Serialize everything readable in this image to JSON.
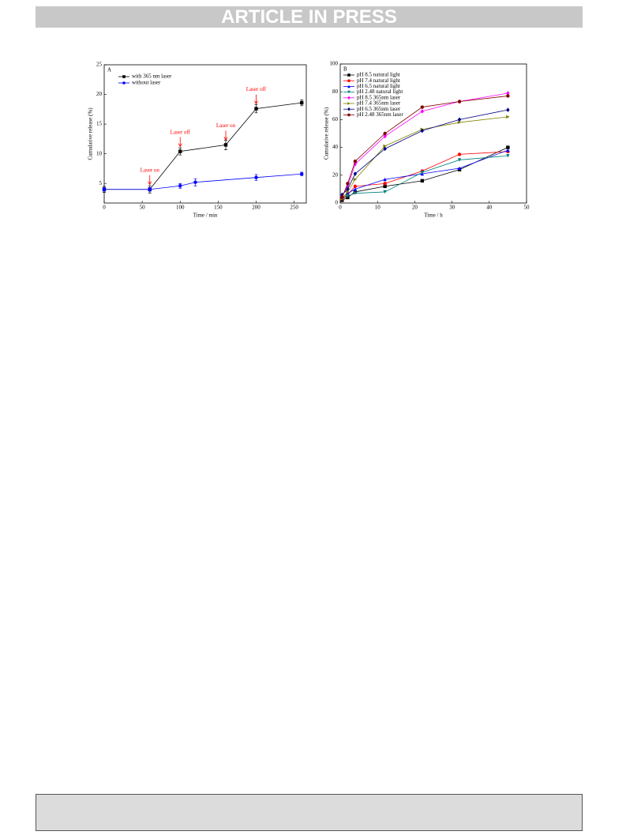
{
  "header": "ARTICLE IN PRESS",
  "chart_data": [
    {
      "type": "line",
      "panel": "A",
      "xlabel": "Time / min",
      "ylabel": "Cumulative release (%)",
      "xlim": [
        0,
        266
      ],
      "xticks": [
        0,
        50,
        100,
        150,
        200,
        250
      ],
      "ylim": [
        1.7,
        25
      ],
      "yticks": [
        5,
        10,
        15,
        20,
        25
      ],
      "legend": "upper left",
      "series": [
        {
          "name": "with 365 nm laser",
          "color": "#000000",
          "marker": "square",
          "x": [
            0,
            60,
            100,
            160,
            200,
            260
          ],
          "values": [
            4,
            4,
            10.4,
            11.5,
            17.6,
            18.6
          ],
          "errors": [
            0.5,
            0.6,
            0.6,
            0.8,
            0.7,
            0.5
          ]
        },
        {
          "name": "without  laser",
          "color": "#0000ff",
          "marker": "circle",
          "x": [
            0,
            60,
            100,
            120,
            200,
            260
          ],
          "values": [
            4,
            4,
            4.6,
            5.2,
            6,
            6.6
          ],
          "errors": [
            0.3,
            0.3,
            0.4,
            0.6,
            0.5,
            0.3
          ]
        }
      ],
      "annotations": [
        "Laser on",
        "Laser off",
        "Laser on",
        "Laser off"
      ]
    },
    {
      "type": "line",
      "panel": "B",
      "xlabel": "Time / h",
      "ylabel": "Cumulative release (%)",
      "xlim": [
        0,
        50
      ],
      "xticks": [
        0,
        10,
        20,
        30,
        40,
        50
      ],
      "ylim": [
        0,
        100
      ],
      "yticks": [
        0,
        20,
        40,
        60,
        80,
        100
      ],
      "legend": "upper left",
      "series": [
        {
          "name": "pH 8.5  natural light",
          "color": "#000000",
          "marker": "square",
          "x": [
            0.5,
            2,
            4,
            12,
            22,
            32,
            45
          ],
          "values": [
            2,
            4,
            8,
            12,
            16,
            24,
            40
          ]
        },
        {
          "name": "pH 7.4  natural light",
          "color": "#ff0000",
          "marker": "circle",
          "x": [
            0.5,
            2,
            4,
            12,
            22,
            32,
            45
          ],
          "values": [
            3,
            6,
            12,
            14,
            23,
            35,
            37
          ]
        },
        {
          "name": "pH 6.5  natural light",
          "color": "#0000ff",
          "marker": "triangle-up",
          "x": [
            0.5,
            2,
            4,
            12,
            22,
            32,
            45
          ],
          "values": [
            4,
            7,
            10,
            17,
            21,
            25,
            38
          ]
        },
        {
          "name": "pH 2.48 natural light",
          "color": "#008080",
          "marker": "triangle-down",
          "x": [
            0.5,
            2,
            4,
            12,
            22,
            32,
            45
          ],
          "values": [
            3,
            5,
            7,
            8,
            22,
            31,
            34
          ]
        },
        {
          "name": "pH 8.5  365nm laser",
          "color": "#ff00ff",
          "marker": "diamond",
          "x": [
            0.5,
            2,
            4,
            12,
            22,
            32,
            45
          ],
          "values": [
            5,
            12,
            28,
            48,
            66,
            73,
            79
          ]
        },
        {
          "name": "pH 7.4  365nm laser",
          "color": "#808000",
          "marker": "triangle-right",
          "x": [
            0.5,
            2,
            4,
            12,
            22,
            32,
            45
          ],
          "values": [
            3,
            8,
            17,
            41,
            53,
            58,
            62
          ]
        },
        {
          "name": "pH 6.5  365nm laser",
          "color": "#000080",
          "marker": "diamond",
          "x": [
            0.5,
            2,
            4,
            12,
            22,
            32,
            45
          ],
          "values": [
            6,
            10,
            21,
            39,
            52,
            60,
            67
          ]
        },
        {
          "name": "pH 2.48 365nm laser",
          "color": "#800000",
          "marker": "circle",
          "x": [
            0.5,
            2,
            4,
            12,
            22,
            32,
            45
          ],
          "values": [
            4,
            14,
            30,
            50,
            69,
            73,
            77
          ]
        }
      ]
    }
  ]
}
